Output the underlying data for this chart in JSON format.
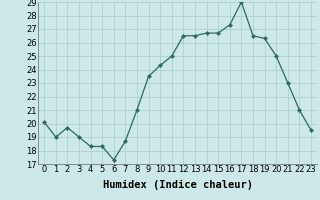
{
  "x": [
    0,
    1,
    2,
    3,
    4,
    5,
    6,
    7,
    8,
    9,
    10,
    11,
    12,
    13,
    14,
    15,
    16,
    17,
    18,
    19,
    20,
    21,
    22,
    23
  ],
  "y": [
    20.1,
    19.0,
    19.7,
    19.0,
    18.3,
    18.3,
    17.3,
    18.7,
    21.0,
    23.5,
    24.3,
    25.0,
    26.5,
    26.5,
    26.7,
    26.7,
    27.3,
    29.0,
    26.5,
    26.3,
    25.0,
    23.0,
    21.0,
    19.5
  ],
  "xlabel": "Humidex (Indice chaleur)",
  "ylim": [
    17,
    29
  ],
  "yticks": [
    17,
    18,
    19,
    20,
    21,
    22,
    23,
    24,
    25,
    26,
    27,
    28,
    29
  ],
  "xticks": [
    0,
    1,
    2,
    3,
    4,
    5,
    6,
    7,
    8,
    9,
    10,
    11,
    12,
    13,
    14,
    15,
    16,
    17,
    18,
    19,
    20,
    21,
    22,
    23
  ],
  "line_color": "#2e6b5e",
  "marker_color": "#2e6b5e",
  "bg_color": "#cce8e8",
  "grid_color": "#aacccc",
  "xlabel_fontsize": 7.5,
  "tick_fontsize": 6.0
}
